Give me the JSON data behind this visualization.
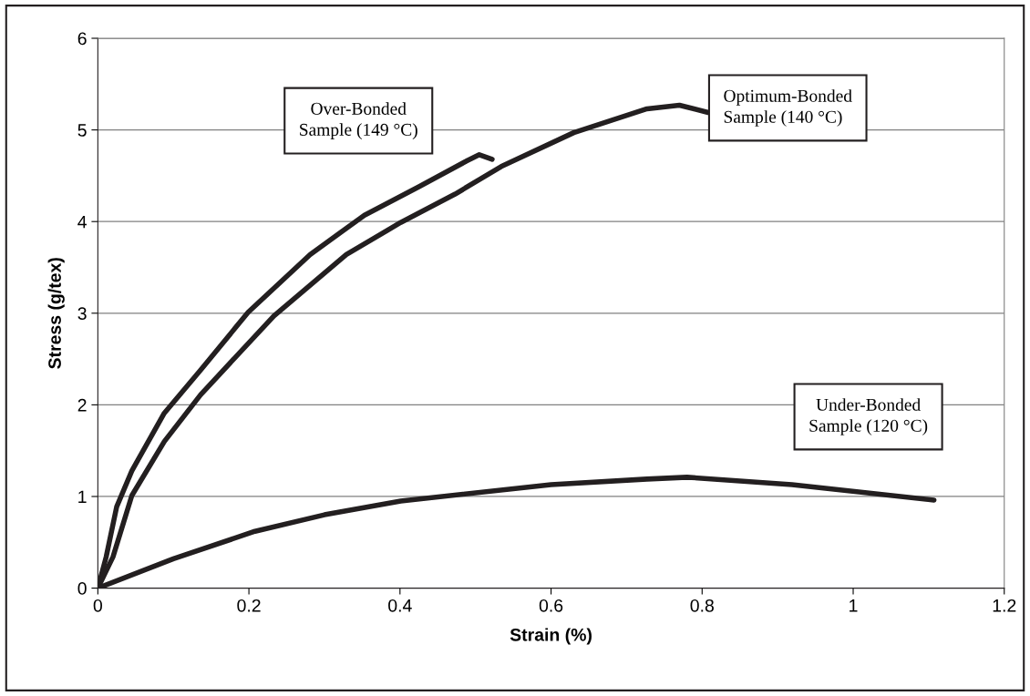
{
  "chart_data": {
    "type": "line",
    "xlabel": "Strain (%)",
    "ylabel": "Stress (g/tex)",
    "xlim": [
      0,
      1.2
    ],
    "xticks": [
      0,
      0.2,
      0.4,
      0.6,
      0.8,
      1,
      1.2
    ],
    "ylim": [
      0,
      6
    ],
    "yticks": [
      0,
      1,
      2,
      3,
      4,
      5,
      6
    ],
    "grid": "y",
    "legend": false,
    "marker": "none",
    "line_style": "solid",
    "series": [
      {
        "name": "Over-Bonded\nSample (149 °C)",
        "color": "#231f20",
        "x": [
          0,
          0.011,
          0.025,
          0.045,
          0.088,
          0.136,
          0.199,
          0.281,
          0.353,
          0.425,
          0.488,
          0.505,
          0.522
        ],
        "values": [
          0,
          0.34,
          0.89,
          1.28,
          1.91,
          2.38,
          3.01,
          3.64,
          4.07,
          4.38,
          4.66,
          4.73,
          4.68
        ]
      },
      {
        "name": "Optimum-Bonded\nSample (140 °C)",
        "color": "#231f20",
        "x": [
          0,
          0.02,
          0.045,
          0.088,
          0.136,
          0.233,
          0.329,
          0.401,
          0.473,
          0.534,
          0.63,
          0.727,
          0.77,
          0.808
        ],
        "values": [
          0,
          0.34,
          1.01,
          1.6,
          2.11,
          2.97,
          3.64,
          3.99,
          4.3,
          4.6,
          4.97,
          5.23,
          5.27,
          5.19
        ]
      },
      {
        "name": "Under-Bonded\nSample (120 °C)",
        "color": "#231f20",
        "x": [
          0,
          0.1,
          0.208,
          0.3,
          0.401,
          0.6,
          0.727,
          0.78,
          0.919,
          1.107
        ],
        "values": [
          0,
          0.32,
          0.62,
          0.8,
          0.95,
          1.13,
          1.19,
          1.21,
          1.13,
          0.96
        ]
      }
    ]
  }
}
